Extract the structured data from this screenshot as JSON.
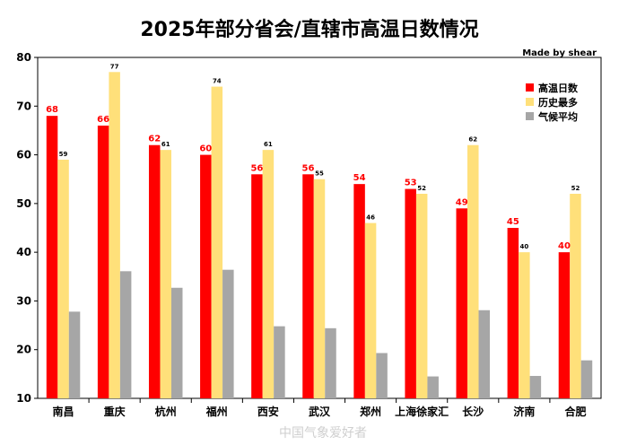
{
  "colors": {
    "high_temp_days": "#ff0000",
    "record_most": "#ffe07a",
    "climate_avg": "#a6a6a6"
  },
  "watermark": "中国气象爱好者",
  "chart_data": {
    "type": "bar",
    "title": "2025年部分省会/直辖市高温日数情况",
    "credit": "Made by shear",
    "categories": [
      "南昌",
      "重庆",
      "杭州",
      "福州",
      "西安",
      "武汉",
      "郑州",
      "上海徐家汇",
      "长沙",
      "济南",
      "合肥"
    ],
    "series": [
      {
        "name": "高温日数",
        "values": [
          68,
          66,
          62,
          60,
          56,
          56,
          54,
          53,
          49,
          45,
          40
        ],
        "labeled": true
      },
      {
        "name": "历史最多",
        "values": [
          59,
          77,
          61,
          74,
          61,
          55,
          46,
          52,
          62,
          40,
          52
        ],
        "labeled": true
      },
      {
        "name": "气候平均",
        "values": [
          27.8,
          36.1,
          32.7,
          36.4,
          24.8,
          24.4,
          19.3,
          14.5,
          28.1,
          14.6,
          17.8
        ],
        "labeled": false
      }
    ],
    "ylim": [
      10,
      80
    ],
    "yticks": [
      10,
      20,
      30,
      40,
      50,
      60,
      70,
      80
    ],
    "grid": false,
    "legend_position": "top-right"
  }
}
